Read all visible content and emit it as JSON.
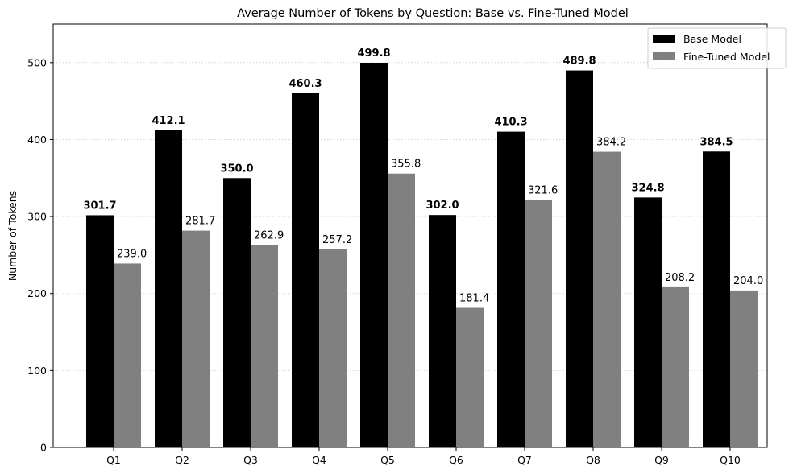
{
  "chart_data": {
    "type": "bar",
    "title": "Average Number of Tokens by Question: Base vs. Fine-Tuned Model",
    "xlabel": "",
    "ylabel": "Number of Tokens",
    "ylim": [
      0,
      550
    ],
    "yticks": [
      0,
      100,
      200,
      300,
      400,
      500
    ],
    "grid": "horizontal dotted",
    "legend_position": "top-right",
    "categories": [
      "Q1",
      "Q2",
      "Q3",
      "Q4",
      "Q5",
      "Q6",
      "Q7",
      "Q8",
      "Q9",
      "Q10"
    ],
    "series": [
      {
        "name": "Base Model",
        "color": "#000000",
        "values": [
          301.7,
          412.1,
          350.0,
          460.3,
          499.8,
          302.0,
          410.3,
          489.8,
          324.8,
          384.5
        ],
        "labels": [
          "301.7",
          "412.1",
          "350.0",
          "460.3",
          "499.8",
          "302.0",
          "410.3",
          "489.8",
          "324.8",
          "384.5"
        ]
      },
      {
        "name": "Fine-Tuned Model",
        "color": "#808080",
        "values": [
          239.0,
          281.7,
          262.9,
          257.2,
          355.8,
          181.4,
          321.6,
          384.2,
          208.2,
          204.0
        ],
        "labels": [
          "239.0",
          "281.7",
          "262.9",
          "257.2",
          "355.8",
          "181.4",
          "321.6",
          "384.2",
          "208.2",
          "204.0"
        ]
      }
    ]
  }
}
